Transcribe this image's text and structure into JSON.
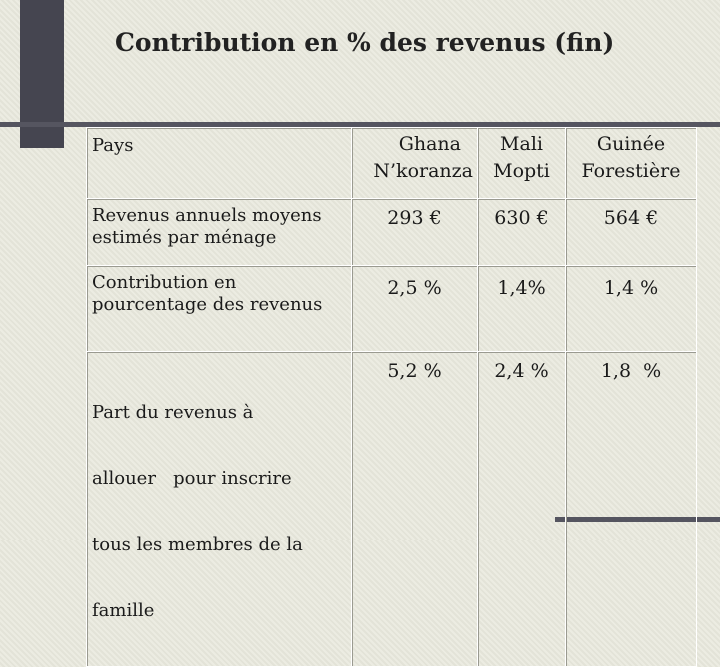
{
  "title": "Contribution en % des revenus (fin)",
  "table": {
    "header": {
      "row_label": "Pays",
      "columns": [
        {
          "line1": "Ghana",
          "line2": "N’koranza"
        },
        {
          "line1": "Mali",
          "line2": "Mopti"
        },
        {
          "line1": "Guinée",
          "line2": "Forestière"
        }
      ]
    },
    "rows": [
      {
        "label_lines": [
          "Revenus annuels moyens",
          "estimés par ménage"
        ],
        "values": [
          "293 €",
          "630 €",
          "564 €"
        ]
      },
      {
        "label_lines": [
          "Contribution en",
          "pourcentage des revenus"
        ],
        "values": [
          "2,5 %",
          "1,4%",
          "1,4 %"
        ]
      },
      {
        "label_lines": [
          "Part du revenus à",
          "allouer   pour inscrire",
          "tous les membres de la",
          "famille"
        ],
        "values": [
          "5,2 %",
          "2,4 %",
          "1,8  %"
        ]
      }
    ]
  }
}
